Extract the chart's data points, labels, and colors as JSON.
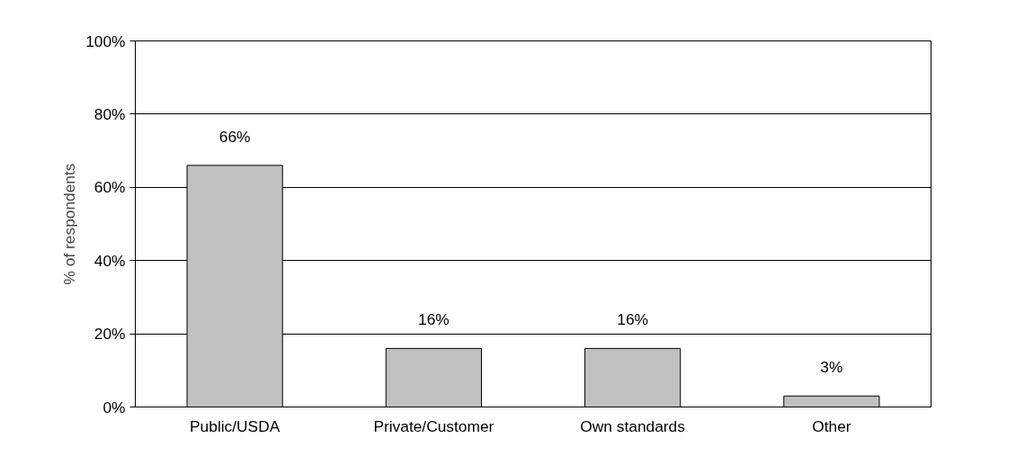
{
  "chart_data": {
    "type": "bar",
    "ylabel": "% of respondents",
    "categories": [
      "Public/USDA",
      "Private/Customer",
      "Own standards",
      "Other"
    ],
    "values": [
      66,
      16,
      16,
      3
    ],
    "color": "#c0c0c0",
    "value_labels": [
      "66%",
      "16%",
      "16%",
      "3%"
    ],
    "ylim": [
      0,
      100
    ],
    "yticks": [
      {
        "value": 0,
        "label": "0%"
      },
      {
        "value": 20,
        "label": "20%"
      },
      {
        "value": 40,
        "label": "40%"
      },
      {
        "value": 60,
        "label": "60%"
      },
      {
        "value": 80,
        "label": "80%"
      },
      {
        "value": 100,
        "label": "100%"
      }
    ],
    "grid": "y"
  }
}
